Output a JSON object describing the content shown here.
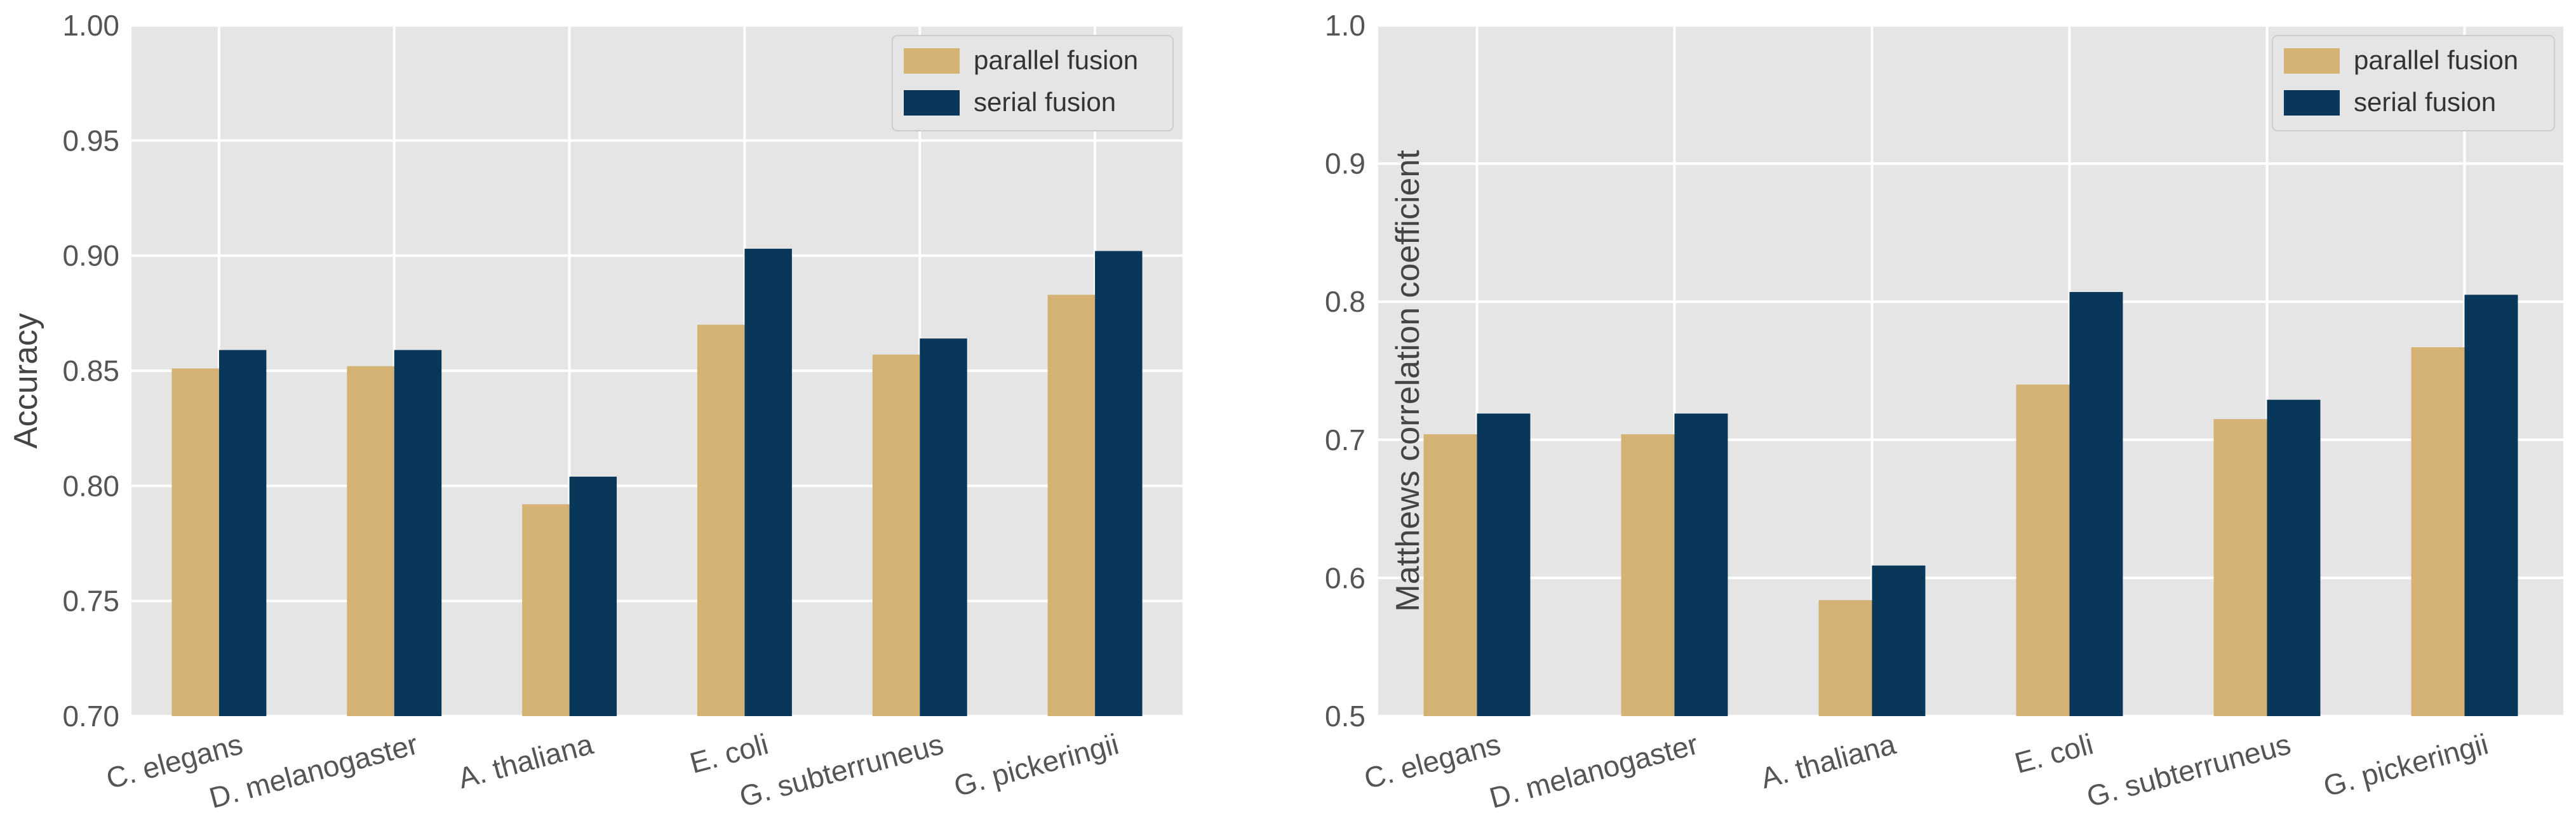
{
  "chart_data": [
    {
      "type": "bar",
      "title": "",
      "xlabel": "",
      "ylabel": "Accuracy",
      "ylim": [
        0.7,
        1.0
      ],
      "yticks": [
        "0.70",
        "0.75",
        "0.80",
        "0.85",
        "0.90",
        "0.95",
        "1.00"
      ],
      "ytick_values": [
        0.7,
        0.75,
        0.8,
        0.85,
        0.9,
        0.95,
        1.0
      ],
      "grid": true,
      "legend_position": "top-right",
      "categories": [
        "C. elegans",
        "D. melanogaster",
        "A. thaliana",
        "E. coli",
        "G. subterruneus",
        "G. pickeringii"
      ],
      "series": [
        {
          "name": "parallel fusion",
          "color": "#D4B273",
          "values": [
            0.851,
            0.852,
            0.792,
            0.87,
            0.857,
            0.883
          ]
        },
        {
          "name": "serial fusion",
          "color": "#08375A",
          "values": [
            0.859,
            0.859,
            0.804,
            0.903,
            0.864,
            0.902
          ]
        }
      ]
    },
    {
      "type": "bar",
      "title": "",
      "xlabel": "",
      "ylabel": "Matthews correlation coefficient",
      "ylim": [
        0.5,
        1.0
      ],
      "yticks": [
        "0.5",
        "0.6",
        "0.7",
        "0.8",
        "0.9",
        "1.0"
      ],
      "ytick_values": [
        0.5,
        0.6,
        0.7,
        0.8,
        0.9,
        1.0
      ],
      "grid": true,
      "legend_position": "top-right",
      "categories": [
        "C. elegans",
        "D. melanogaster",
        "A. thaliana",
        "E. coli",
        "G. subterruneus",
        "G. pickeringii"
      ],
      "series": [
        {
          "name": "parallel fusion",
          "color": "#D4B273",
          "values": [
            0.704,
            0.704,
            0.584,
            0.74,
            0.715,
            0.767
          ]
        },
        {
          "name": "serial fusion",
          "color": "#08375A",
          "values": [
            0.719,
            0.719,
            0.609,
            0.807,
            0.729,
            0.805
          ]
        }
      ]
    }
  ],
  "style": {
    "plot_background": "#E5E5E5",
    "grid_color": "#FFFFFF",
    "legend_background": "#E5E5E5"
  }
}
